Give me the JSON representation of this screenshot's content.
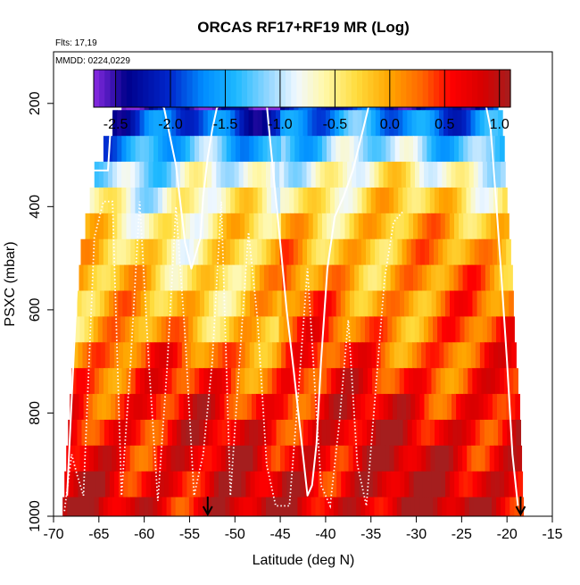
{
  "chart_data": {
    "type": "heatmap",
    "title": "ORCAS RF17+RF19 MR (Log)",
    "annotation_flights": "Flts: 17,19",
    "annotation_dates": "MMDD: 0224,0229",
    "xlabel": "Latitude (deg N)",
    "ylabel": "PSXC (mbar)",
    "xlim": [
      -70,
      -15
    ],
    "ylim": [
      1000,
      100
    ],
    "x_ticks": [
      -70,
      -65,
      -60,
      -55,
      -50,
      -45,
      -40,
      -35,
      -30,
      -25,
      -20,
      -15
    ],
    "x_tick_labels": [
      "-70",
      "-65",
      "-60",
      "-55",
      "-50",
      "-45",
      "-40",
      "-35",
      "-30",
      "-25",
      "-20",
      "-15"
    ],
    "y_ticks": [
      200,
      400,
      600,
      800,
      1000
    ],
    "y_tick_labels": [
      "200",
      "400",
      "600",
      "800",
      "1000"
    ],
    "colorbar": {
      "range": [
        -2.7,
        1.1
      ],
      "ticks": [
        -2.5,
        -2.0,
        -1.5,
        -1.0,
        -0.5,
        0.0,
        0.5,
        1.0
      ],
      "tick_labels": [
        "-2.5",
        "-2.0",
        "-1.5",
        "-1.0",
        "-0.5",
        "0.0",
        "0.5",
        "1.0"
      ]
    },
    "pressure_layers": [
      {
        "p": 188,
        "lat_min": -62.5,
        "lat_max": -21.0,
        "value": -2.3
      },
      {
        "p": 238,
        "lat_min": -63.5,
        "lat_max": -20.5,
        "value": -1.8
      },
      {
        "p": 288,
        "lat_min": -64.5,
        "lat_max": -20.3,
        "value": -1.3
      },
      {
        "p": 338,
        "lat_min": -65.5,
        "lat_max": -20.2,
        "value": -0.8
      },
      {
        "p": 388,
        "lat_min": -66.0,
        "lat_max": -20.0,
        "value": -0.5
      },
      {
        "p": 438,
        "lat_min": -66.5,
        "lat_max": -19.8,
        "value": -0.3
      },
      {
        "p": 488,
        "lat_min": -67.0,
        "lat_max": -19.6,
        "value": -0.2
      },
      {
        "p": 538,
        "lat_min": -67.2,
        "lat_max": -19.4,
        "value": -0.1
      },
      {
        "p": 588,
        "lat_min": -67.4,
        "lat_max": -19.3,
        "value": 0.0
      },
      {
        "p": 638,
        "lat_min": -67.6,
        "lat_max": -19.2,
        "value": 0.1
      },
      {
        "p": 688,
        "lat_min": -67.8,
        "lat_max": -19.0,
        "value": 0.3
      },
      {
        "p": 738,
        "lat_min": -68.0,
        "lat_max": -18.8,
        "value": 0.45
      },
      {
        "p": 788,
        "lat_min": -68.2,
        "lat_max": -18.6,
        "value": 0.6
      },
      {
        "p": 838,
        "lat_min": -68.4,
        "lat_max": -18.5,
        "value": 0.7
      },
      {
        "p": 888,
        "lat_min": -68.6,
        "lat_max": -18.4,
        "value": 0.75
      },
      {
        "p": 938,
        "lat_min": -68.8,
        "lat_max": -18.3,
        "value": 0.8
      },
      {
        "p": 988,
        "lat_min": -69.0,
        "lat_max": -18.2,
        "value": 0.85
      }
    ],
    "flight_track_solid": [
      [
        -68.5,
        960
      ],
      [
        -66.8,
        330
      ],
      [
        -64,
        330
      ],
      [
        -63.5,
        188
      ],
      [
        -58.5,
        188
      ],
      [
        -57.8,
        210
      ],
      [
        -56.5,
        320
      ],
      [
        -55.5,
        470
      ],
      [
        -54.8,
        520
      ],
      [
        -53.8,
        460
      ],
      [
        -53.5,
        380
      ],
      [
        -53,
        305
      ],
      [
        -52.5,
        250
      ],
      [
        -52,
        210
      ],
      [
        -51.2,
        188
      ],
      [
        -47,
        188
      ],
      [
        -46.5,
        200
      ],
      [
        -45.8,
        330
      ],
      [
        -45,
        470
      ],
      [
        -44.3,
        600
      ],
      [
        -43.5,
        720
      ],
      [
        -43,
        800
      ],
      [
        -42.5,
        880
      ],
      [
        -42,
        960
      ],
      [
        -41.5,
        940
      ],
      [
        -41,
        860
      ],
      [
        -40.5,
        700
      ],
      [
        -39.8,
        520
      ],
      [
        -39,
        420
      ],
      [
        -38,
        380
      ],
      [
        -37,
        330
      ],
      [
        -36,
        260
      ],
      [
        -35,
        188
      ],
      [
        -22.5,
        188
      ],
      [
        -21.8,
        250
      ],
      [
        -21.2,
        390
      ],
      [
        -20.6,
        540
      ],
      [
        -20,
        700
      ],
      [
        -19.4,
        880
      ],
      [
        -18.8,
        980
      ]
    ],
    "flight_track_dotted": [
      [
        -68.8,
        990
      ],
      [
        -68,
        880
      ],
      [
        -67.4,
        920
      ],
      [
        -66.7,
        960
      ],
      [
        -65.5,
        460
      ],
      [
        -64.5,
        390
      ],
      [
        -63.5,
        390
      ],
      [
        -62.5,
        960
      ],
      [
        -61.5,
        700
      ],
      [
        -60.5,
        390
      ],
      [
        -59.5,
        700
      ],
      [
        -58.5,
        970
      ],
      [
        -57.5,
        720
      ],
      [
        -56.5,
        400
      ],
      [
        -55.5,
        650
      ],
      [
        -54.5,
        960
      ],
      [
        -53.5,
        880
      ],
      [
        -52.5,
        700
      ],
      [
        -51.5,
        390
      ],
      [
        -50.5,
        960
      ],
      [
        -49.5,
        700
      ],
      [
        -48.5,
        450
      ],
      [
        -47.5,
        620
      ],
      [
        -46.5,
        900
      ],
      [
        -45.5,
        980
      ],
      [
        -44,
        980
      ],
      [
        -43,
        760
      ],
      [
        -42,
        520
      ],
      [
        -40.5,
        940
      ],
      [
        -39.5,
        980
      ],
      [
        -38.5,
        820
      ],
      [
        -37.5,
        620
      ],
      [
        -36.5,
        900
      ],
      [
        -35.5,
        980
      ],
      [
        -34.5,
        760
      ],
      [
        -33.5,
        540
      ],
      [
        -32.5,
        430
      ],
      [
        -31.5,
        410
      ]
    ],
    "arrows_at_surface_lat": [
      -53,
      -18.5
    ]
  }
}
